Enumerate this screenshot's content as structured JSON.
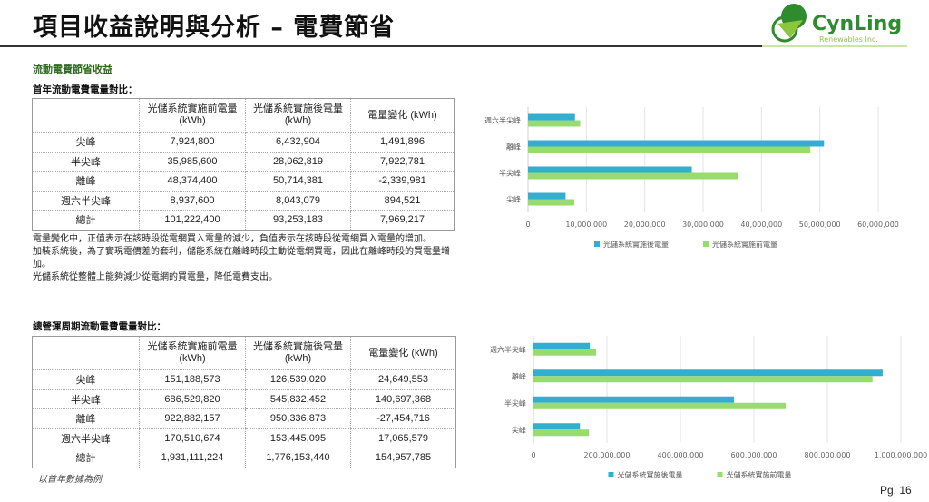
{
  "title": "項目收益說明與分析 – 電費節省",
  "logo": {
    "name": "CynLing",
    "sub": "Renewables Inc."
  },
  "section_heading": "流動電費節省收益",
  "table1": {
    "caption": "首年流動電費電量對比：",
    "headers": [
      "",
      "光儲系統實施前電量\n(kWh)",
      "光儲系統實施後電量\n(kWh)",
      "電量變化 (kWh)"
    ],
    "rows": [
      [
        "尖峰",
        "7,924,800",
        "6,432,904",
        "1,491,896"
      ],
      [
        "半尖峰",
        "35,985,600",
        "28,062,819",
        "7,922,781"
      ],
      [
        "離峰",
        "48,374,400",
        "50,714,381",
        "-2,339,981"
      ],
      [
        "週六半尖峰",
        "8,937,600",
        "8,043,079",
        "894,521"
      ],
      [
        "總計",
        "101,222,400",
        "93,253,183",
        "7,969,217"
      ]
    ]
  },
  "notes": [
    "電量變化中，正值表示在該時段從電網買入電量的減少，負值表示在該時段從電網買入電量的增加。",
    "加裝系統後，為了實現電價差的套利，儲能系統在離峰時段主動從電網買電，因此在離峰時段的買電量增加。",
    "光儲系統從整體上能夠減少從電網的買電量，降低電費支出。"
  ],
  "table2": {
    "caption": "總營運周期流動電費電量對比：",
    "headers": [
      "",
      "光儲系統實施前電量\n(kWh)",
      "光儲系統實施後電量\n(kWh)",
      "電量變化 (kWh)"
    ],
    "rows": [
      [
        "尖峰",
        "151,188,573",
        "126,539,020",
        "24,649,553"
      ],
      [
        "半尖峰",
        "686,529,820",
        "545,832,452",
        "140,697,368"
      ],
      [
        "離峰",
        "922,882,157",
        "950,336,873",
        "-27,454,716"
      ],
      [
        "週六半尖峰",
        "170,510,674",
        "153,445,095",
        "17,065,579"
      ],
      [
        "總計",
        "1,931,111,224",
        "1,776,153,440",
        "154,957,785"
      ]
    ]
  },
  "footnote": "以首年數據為例",
  "page": "Pg. 16",
  "colors": {
    "after": "#31aed0",
    "before": "#98dc6e",
    "accent": "#2f6b1f"
  },
  "chart_data": [
    {
      "type": "bar",
      "orientation": "horizontal",
      "categories": [
        "尖峰",
        "半尖峰",
        "離峰",
        "週六半尖峰"
      ],
      "series": [
        {
          "name": "光儲系統實施後電量",
          "values": [
            6432904,
            28062819,
            50714381,
            8043079
          ]
        },
        {
          "name": "光儲系統實施前電量",
          "values": [
            7924800,
            35985600,
            48374400,
            8937600
          ]
        }
      ],
      "xlim": [
        0,
        60000000
      ],
      "ticks": [
        "0",
        "10,000,000",
        "20,000,000",
        "30,000,000",
        "40,000,000",
        "50,000,000",
        "60,000,000"
      ],
      "legend": "bottom",
      "grid": true
    },
    {
      "type": "bar",
      "orientation": "horizontal",
      "categories": [
        "尖峰",
        "半尖峰",
        "離峰",
        "週六半尖峰"
      ],
      "series": [
        {
          "name": "光儲系統實施後電量",
          "values": [
            126539020,
            545832452,
            950336873,
            153445095
          ]
        },
        {
          "name": "光儲系統實施前電量",
          "values": [
            151188573,
            686529820,
            922882157,
            170510674
          ]
        }
      ],
      "xlim": [
        0,
        1000000000
      ],
      "ticks": [
        "0",
        "200,000,000",
        "400,000,000",
        "600,000,000",
        "800,000,000",
        "1,000,000,000"
      ],
      "legend": "bottom",
      "grid": true
    }
  ]
}
